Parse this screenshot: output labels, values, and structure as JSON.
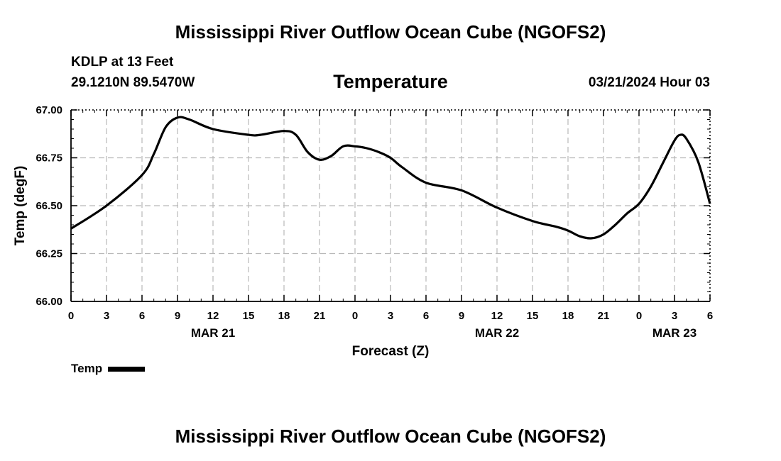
{
  "page": {
    "title_top": "Mississippi River Outflow Ocean Cube (NGOFS2)",
    "title_bottom": "Mississippi River Outflow Ocean Cube (NGOFS2)",
    "station": "KDLP at 13 Feet",
    "coordinates": "29.1210N  89.5470W",
    "subtitle": "Temperature",
    "datetime": "03/21/2024 Hour 03"
  },
  "chart_data": {
    "type": "line",
    "title": "Temperature",
    "xlabel": "Forecast (Z)",
    "ylabel": "Temp (degF)",
    "xlim": [
      0,
      54
    ],
    "ylim": [
      66.0,
      67.0
    ],
    "yticks": [
      66.0,
      66.25,
      66.5,
      66.75,
      67.0
    ],
    "ytick_labels": [
      "66.00",
      "66.25",
      "66.50",
      "66.75",
      "67.00"
    ],
    "xtick_labels": [
      "0",
      "3",
      "6",
      "9",
      "12",
      "15",
      "18",
      "21",
      "0",
      "3",
      "6",
      "9",
      "12",
      "15",
      "18",
      "21",
      "0",
      "3",
      "6"
    ],
    "date_labels": [
      {
        "label": "MAR 21",
        "hour": 12
      },
      {
        "label": "MAR 22",
        "hour": 36
      },
      {
        "label": "MAR 23",
        "hour": 51
      }
    ],
    "grid": true,
    "legend": {
      "position": "bottom-left",
      "entries": [
        "Temp"
      ]
    },
    "series": [
      {
        "name": "Temp",
        "color": "#000000",
        "x": [
          0,
          3,
          6,
          7,
          8,
          9,
          10,
          12,
          15,
          16,
          18,
          19,
          20,
          21,
          22,
          23,
          24,
          25,
          26,
          27,
          28,
          30,
          33,
          36,
          39,
          41,
          42,
          43,
          44,
          45,
          46,
          47,
          48,
          49,
          50,
          51,
          51.5,
          52,
          53,
          54
        ],
        "y": [
          66.38,
          66.5,
          66.66,
          66.77,
          66.91,
          66.96,
          66.95,
          66.9,
          66.87,
          66.87,
          66.89,
          66.87,
          66.78,
          66.74,
          66.76,
          66.81,
          66.81,
          66.8,
          66.78,
          66.75,
          66.7,
          66.62,
          66.58,
          66.49,
          66.42,
          66.39,
          66.37,
          66.34,
          66.33,
          66.35,
          66.4,
          66.46,
          66.51,
          66.6,
          66.72,
          66.84,
          66.87,
          66.85,
          66.73,
          66.51
        ]
      }
    ]
  }
}
